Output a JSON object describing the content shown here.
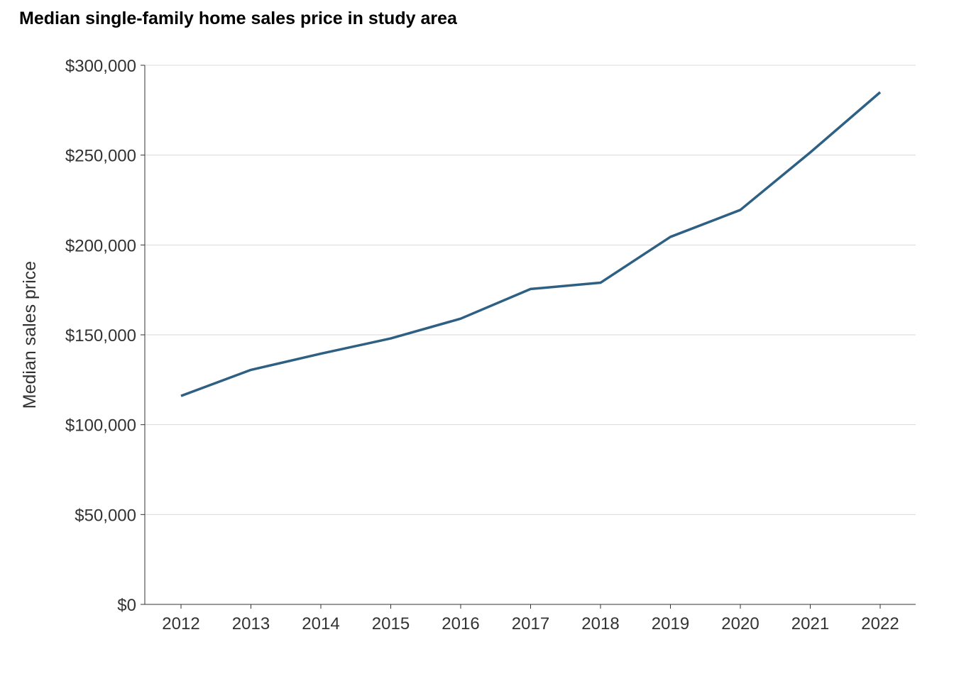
{
  "chart_data": {
    "type": "line",
    "title": "Median single-family home sales price in study area",
    "xlabel": "",
    "ylabel": "Median sales price",
    "x": [
      "2012",
      "2013",
      "2014",
      "2015",
      "2016",
      "2017",
      "2018",
      "2019",
      "2020",
      "2021",
      "2022"
    ],
    "series": [
      {
        "values": [
          116000,
          130500,
          139500,
          148000,
          159000,
          175500,
          179000,
          204500,
          219500,
          251500,
          285000
        ],
        "color": "#2e6083"
      }
    ],
    "yticks": [
      0,
      50000,
      100000,
      150000,
      200000,
      250000,
      300000
    ],
    "ytick_labels": [
      "$0",
      "$50,000",
      "$100,000",
      "$150,000",
      "$200,000",
      "$250,000",
      "$300,000"
    ],
    "ylim": [
      0,
      300000
    ],
    "grid": "horizontal",
    "grid_color": "#d9d9d9",
    "axis_color": "#333333",
    "legend": "none"
  }
}
